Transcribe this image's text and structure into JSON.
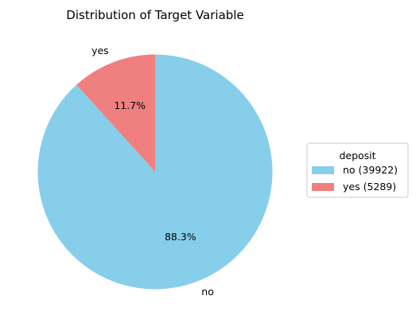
{
  "chart_data": {
    "type": "pie",
    "title": "Distribution of Target Variable",
    "slices": [
      {
        "label": "yes",
        "value": 5289,
        "percent_label": "11.7%",
        "color": "#f08080"
      },
      {
        "label": "no",
        "value": 39922,
        "percent_label": "88.3%",
        "color": "#87ceeb"
      }
    ],
    "start_angle_deg": 90,
    "direction": "counterclockwise",
    "legend": {
      "title": "deposit",
      "placement": "center-right",
      "entries": [
        {
          "text": "no (39922)",
          "color": "#87ceeb"
        },
        {
          "text": "yes (5289)",
          "color": "#f08080"
        }
      ]
    }
  }
}
